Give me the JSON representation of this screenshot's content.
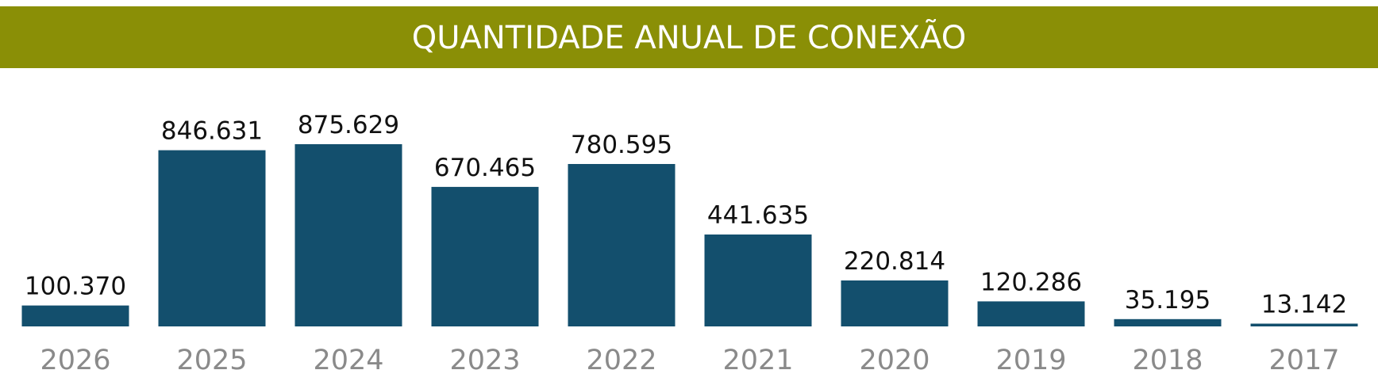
{
  "title": "QUANTIDADE ANUAL DE CONEXÃO",
  "colors": {
    "title_bg": "#8a8f06",
    "title_text": "#ffffff",
    "bar": "#134f6d",
    "value_text": "#111111",
    "year_text": "#8a8a8a"
  },
  "chart_data": {
    "type": "bar",
    "title": "QUANTIDADE ANUAL DE CONEXÃO",
    "xlabel": "",
    "ylabel": "",
    "grid": false,
    "ylim": [
      0,
      900000
    ],
    "categories": [
      "2026",
      "2025",
      "2024",
      "2023",
      "2022",
      "2021",
      "2020",
      "2019",
      "2018",
      "2017"
    ],
    "values": [
      100370,
      846631,
      875629,
      670465,
      780595,
      441635,
      220814,
      120286,
      35195,
      13142
    ],
    "value_labels": [
      "100.370",
      "846.631",
      "875.629",
      "670.465",
      "780.595",
      "441.635",
      "220.814",
      "120.286",
      "35.195",
      "13.142"
    ]
  }
}
